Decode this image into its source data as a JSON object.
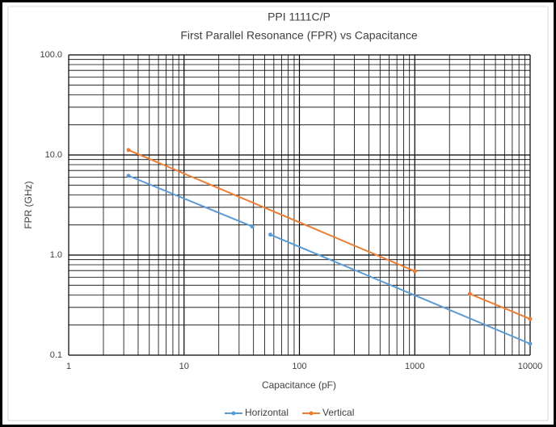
{
  "chart_data": {
    "type": "line",
    "title": "PPI 1111C/P",
    "subtitle": "First Parallel Resonance  (FPR) vs Capacitance",
    "xlabel": "Capacitance (pF)",
    "ylabel": "FPR (GHz)",
    "xscale": "log",
    "yscale": "log",
    "xlim": [
      1,
      10000
    ],
    "ylim": [
      0.1,
      100
    ],
    "xticks": [
      1,
      10,
      100,
      1000,
      10000
    ],
    "yticks": [
      0.1,
      {
        "value": 1,
        "label": "1.0"
      },
      {
        "value": 10,
        "label": "10.0"
      },
      {
        "value": 100,
        "label": "100.0"
      }
    ],
    "grid": true,
    "minor_grid": true,
    "legend": "bottom",
    "series": [
      {
        "name": "Horizontal",
        "color": "#5b9bd5",
        "x": [
          3.3,
          39,
          null,
          56,
          10000
        ],
        "values": [
          6.2,
          1.93,
          null,
          1.6,
          0.13
        ]
      },
      {
        "name": "Vertical",
        "color": "#ed7d31",
        "x": [
          3.3,
          1000,
          null,
          3000,
          10000
        ],
        "values": [
          11.2,
          0.69,
          null,
          0.41,
          0.23
        ]
      }
    ]
  }
}
